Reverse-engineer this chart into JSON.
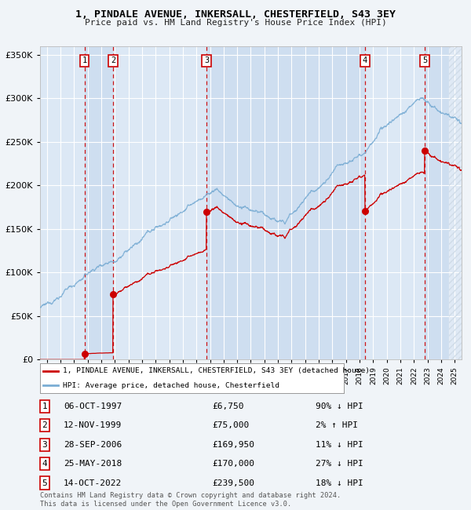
{
  "title": "1, PINDALE AVENUE, INKERSALL, CHESTERFIELD, S43 3EY",
  "subtitle": "Price paid vs. HM Land Registry's House Price Index (HPI)",
  "ylim": [
    0,
    360000
  ],
  "yticks": [
    0,
    50000,
    100000,
    150000,
    200000,
    250000,
    300000,
    350000
  ],
  "xlim_start": 1994.5,
  "xlim_end": 2025.5,
  "bg_color": "#f0f4f8",
  "plot_bg": "#dce8f5",
  "sale_dates": [
    1997.77,
    1999.87,
    2006.74,
    2018.4,
    2022.79
  ],
  "sale_prices": [
    6750,
    75000,
    169950,
    170000,
    239500
  ],
  "sale_labels": [
    "1",
    "2",
    "3",
    "4",
    "5"
  ],
  "sale_info": [
    {
      "num": "1",
      "date": "06-OCT-1997",
      "price": "£6,750",
      "hpi": "90% ↓ HPI"
    },
    {
      "num": "2",
      "date": "12-NOV-1999",
      "price": "£75,000",
      "hpi": "2% ↑ HPI"
    },
    {
      "num": "3",
      "date": "28-SEP-2006",
      "price": "£169,950",
      "hpi": "11% ↓ HPI"
    },
    {
      "num": "4",
      "date": "25-MAY-2018",
      "price": "£170,000",
      "hpi": "27% ↓ HPI"
    },
    {
      "num": "5",
      "date": "14-OCT-2022",
      "price": "£239,500",
      "hpi": "18% ↓ HPI"
    }
  ],
  "line1_label": "1, PINDALE AVENUE, INKERSALL, CHESTERFIELD, S43 3EY (detached house)",
  "line2_label": "HPI: Average price, detached house, Chesterfield",
  "red_color": "#cc0000",
  "blue_color": "#7aadd4",
  "shade_color": "#c5d8ed",
  "hatch_color": "#d0dce8",
  "footer": "Contains HM Land Registry data © Crown copyright and database right 2024.\nThis data is licensed under the Open Government Licence v3.0."
}
